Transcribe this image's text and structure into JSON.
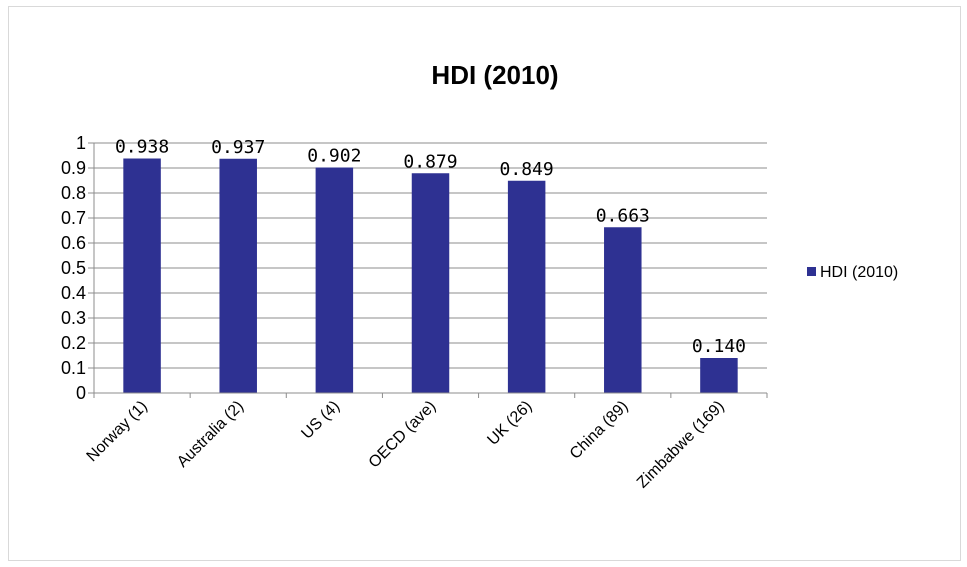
{
  "chart_data": {
    "type": "bar",
    "title": "HDI (2010)",
    "xlabel": "",
    "ylabel": "",
    "categories": [
      "Norway (1)",
      "Australia (2)",
      "US (4)",
      "OECD (ave)",
      "UK (26)",
      "China (89)",
      "Zimbabwe (169)"
    ],
    "series": [
      {
        "name": "HDI (2010)",
        "values": [
          0.938,
          0.937,
          0.902,
          0.879,
          0.849,
          0.663,
          0.14
        ],
        "labels": [
          "0.938",
          "0.937",
          "0.902",
          "0.879",
          "0.849",
          "0.663",
          "0.140"
        ],
        "color": "#2e3192"
      }
    ],
    "ylim": [
      0,
      1
    ],
    "yticks": [
      "0",
      "0.1",
      "0.2",
      "0.3",
      "0.4",
      "0.5",
      "0.6",
      "0.7",
      "0.8",
      "0.9",
      "1"
    ],
    "grid": true,
    "legend_position": "right"
  }
}
